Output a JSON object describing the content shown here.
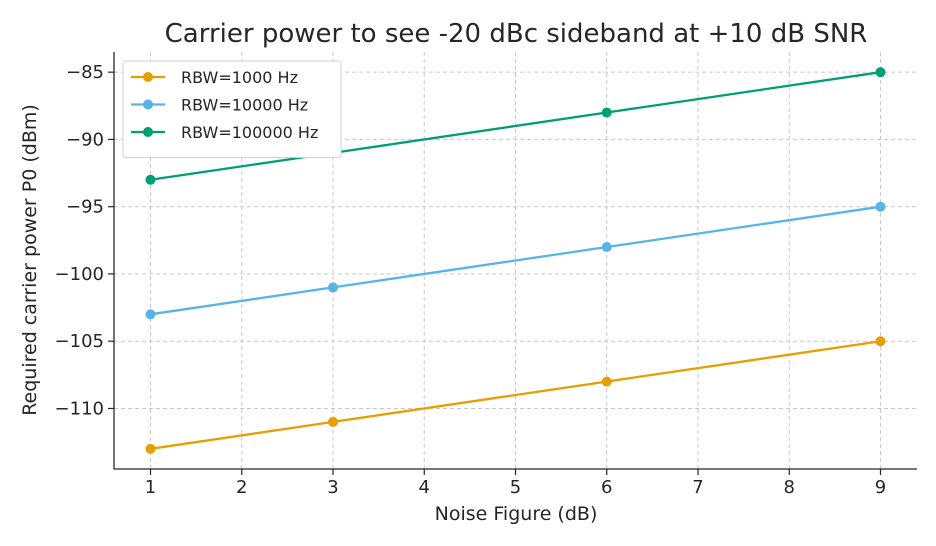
{
  "chart_data": {
    "type": "line",
    "title": "Carrier power to see -20 dBc sideband at +10 dB SNR",
    "xlabel": "Noise Figure (dB)",
    "ylabel": "Required carrier power P0 (dBm)",
    "xlim": [
      0.6,
      9.4
    ],
    "ylim": [
      -114.5,
      -83.5
    ],
    "xticks": [
      1,
      2,
      3,
      4,
      5,
      6,
      7,
      8,
      9
    ],
    "xtick_labels": [
      "1",
      "2",
      "3",
      "4",
      "5",
      "6",
      "7",
      "8",
      "9"
    ],
    "yticks": [
      -110,
      -105,
      -100,
      -95,
      -90,
      -85
    ],
    "ytick_labels": [
      "−110",
      "−105",
      "−100",
      "−95",
      "−90",
      "−85"
    ],
    "grid": true,
    "legend_position": "top-left",
    "series": [
      {
        "name": "RBW=1000 Hz",
        "color": "#E69F00",
        "x": [
          1,
          3,
          6,
          9
        ],
        "y": [
          -113,
          -111,
          -108,
          -105
        ]
      },
      {
        "name": "RBW=10000 Hz",
        "color": "#56B4E9",
        "x": [
          1,
          3,
          6,
          9
        ],
        "y": [
          -103,
          -101,
          -98,
          -95
        ]
      },
      {
        "name": "RBW=100000 Hz",
        "color": "#009E73",
        "x": [
          1,
          3,
          6,
          9
        ],
        "y": [
          -93,
          -91,
          -88,
          -85
        ]
      }
    ]
  }
}
